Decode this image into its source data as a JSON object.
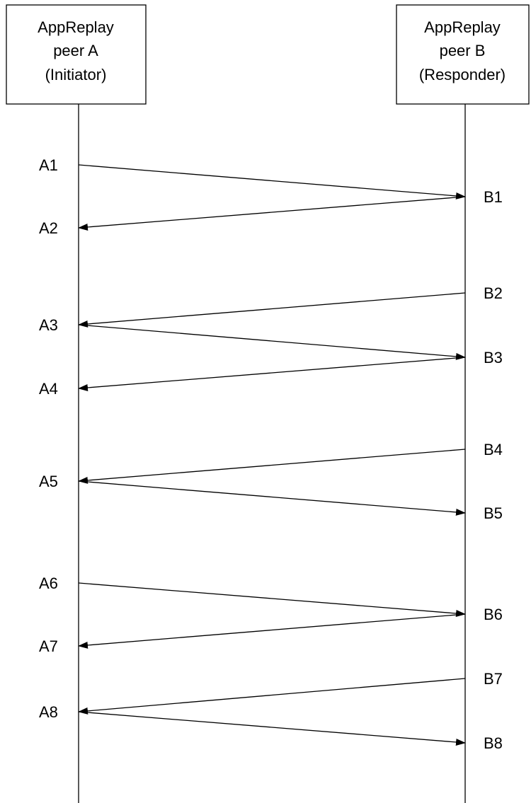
{
  "peers": {
    "a": {
      "lines": [
        "AppReplay",
        "peer A",
        "(Initiator)"
      ]
    },
    "b": {
      "lines": [
        "AppReplay",
        "peer B",
        "(Responder)"
      ]
    }
  },
  "events_a": [
    "A1",
    "A2",
    "A3",
    "A4",
    "A5",
    "A6",
    "A7",
    "A8"
  ],
  "events_b": [
    "B1",
    "B2",
    "B3",
    "B4",
    "B5",
    "B6",
    "B7",
    "B8"
  ],
  "messages": [
    {
      "from": "A1",
      "to": "B1"
    },
    {
      "from": "B1",
      "to": "A2"
    },
    {
      "from": "B2",
      "to": "A3"
    },
    {
      "from": "A3",
      "to": "B3"
    },
    {
      "from": "B3",
      "to": "A4"
    },
    {
      "from": "B4",
      "to": "A5"
    },
    {
      "from": "A5",
      "to": "B5"
    },
    {
      "from": "A6",
      "to": "B6"
    },
    {
      "from": "B6",
      "to": "A7"
    },
    {
      "from": "B7",
      "to": "A8"
    },
    {
      "from": "A8",
      "to": "B8"
    }
  ]
}
